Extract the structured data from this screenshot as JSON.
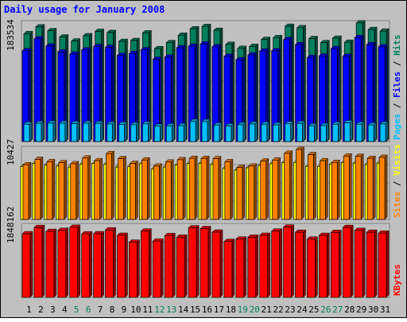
{
  "chart_data": {
    "title": "Daily usage for January 2008",
    "colors": {
      "background": "#c0c0c0",
      "title": "#0000ff",
      "hits": "#00805c",
      "files": "#0000ff",
      "pages": "#00c0ff",
      "visits": "#ffff00",
      "sites": "#ff8000",
      "kbytes": "#ff0000",
      "weekend_label": "#00805c",
      "weekday_label": "#000000"
    },
    "days": [
      "1",
      "2",
      "3",
      "4",
      "5",
      "6",
      "7",
      "8",
      "9",
      "10",
      "11",
      "12",
      "13",
      "14",
      "15",
      "16",
      "17",
      "18",
      "19",
      "20",
      "21",
      "22",
      "23",
      "24",
      "25",
      "26",
      "27",
      "28",
      "29",
      "30",
      "31"
    ],
    "weekend_days": [
      "5",
      "6",
      "12",
      "13",
      "19",
      "20",
      "26",
      "27"
    ],
    "panels": [
      {
        "type": "bar",
        "ylabel_parts": [
          {
            "text": "Pages",
            "color": "#00c0ff"
          },
          {
            "text": " / ",
            "color": "#000000"
          },
          {
            "text": "Files",
            "color": "#0000ff"
          },
          {
            "text": " / ",
            "color": "#000000"
          },
          {
            "text": "Hits",
            "color": "#00805c"
          }
        ],
        "max_label": "183534",
        "ylim": [
          0,
          183534
        ],
        "series": [
          {
            "name": "Hits",
            "color": "#00805c",
            "values": [
              168200,
              178800,
              172900,
              163000,
              156700,
              165000,
              171800,
              170000,
              156200,
              157500,
              169500,
              144800,
              154200,
              165800,
              175800,
              179500,
              173400,
              151500,
              145300,
              148300,
              159200,
              162000,
              179700,
              177500,
              160600,
              154200,
              161100,
              154800,
              185000,
              174600,
              172200
            ]
          },
          {
            "name": "Files",
            "color": "#0000ff",
            "values": [
              141600,
              160100,
              148900,
              139600,
              136400,
              142900,
              148200,
              146900,
              134400,
              137300,
              143100,
              128200,
              131600,
              146200,
              148700,
              152200,
              147800,
              132900,
              127400,
              135000,
              141000,
              141400,
              158900,
              151000,
              131000,
              133500,
              144900,
              133000,
              162000,
              151000,
              147700
            ]
          },
          {
            "name": "Pages",
            "color": "#00c0ff",
            "values": [
              26900,
              28200,
              28600,
              28500,
              28000,
              28500,
              28200,
              27300,
              26800,
              26100,
              27500,
              23900,
              24400,
              24700,
              31200,
              31000,
              25500,
              24300,
              26200,
              27300,
              26800,
              25900,
              27600,
              28200,
              24500,
              24900,
              26800,
              29300,
              26800,
              25700,
              27300
            ]
          }
        ]
      },
      {
        "type": "bar",
        "ylabel_parts": [
          {
            "text": "Sites",
            "color": "#ff8000"
          },
          {
            "text": " / ",
            "color": "#000000"
          },
          {
            "text": "Visits",
            "color": "#ffff00"
          }
        ],
        "max_label": "10427",
        "ylim": [
          0,
          10427
        ],
        "series": [
          {
            "name": "Visits",
            "color": "#ffff00",
            "values": [
              7900,
              8350,
              8100,
              7950,
              7800,
              8250,
              8350,
              8200,
              7800,
              7850,
              8300,
              7500,
              7800,
              8100,
              8350,
              8350,
              8200,
              7600,
              7350,
              7700,
              8050,
              8300,
              8450,
              8500,
              7900,
              7900,
              8200,
              8450,
              8400,
              8200,
              8400
            ]
          },
          {
            "name": "Sites",
            "color": "#ff8000",
            "values": [
              8150,
              8950,
              8600,
              8450,
              8300,
              9150,
              8750,
              9800,
              9050,
              8350,
              8850,
              7950,
              8550,
              8900,
              9100,
              9100,
              9050,
              8600,
              7750,
              7950,
              8700,
              8850,
              9850,
              10427,
              9650,
              8750,
              8500,
              9450,
              9400,
              9100,
              9250
            ]
          }
        ]
      },
      {
        "type": "bar",
        "ylabel_parts": [
          {
            "text": "KBytes",
            "color": "#ff0000"
          }
        ],
        "max_label": "1848162",
        "ylim": [
          0,
          1848162
        ],
        "series": [
          {
            "name": "KBytes",
            "color": "#ff0000",
            "values": [
              1660000,
              1825000,
              1722000,
              1748000,
              1830000,
              1656000,
              1660000,
              1760000,
              1620000,
              1440000,
              1730000,
              1470000,
              1612000,
              1570000,
              1815000,
              1795000,
              1702000,
              1460000,
              1522000,
              1570000,
              1620000,
              1730000,
              1835000,
              1700000,
              1520000,
              1618000,
              1696000,
              1825000,
              1748000,
              1700000,
              1676000
            ]
          }
        ]
      }
    ]
  }
}
